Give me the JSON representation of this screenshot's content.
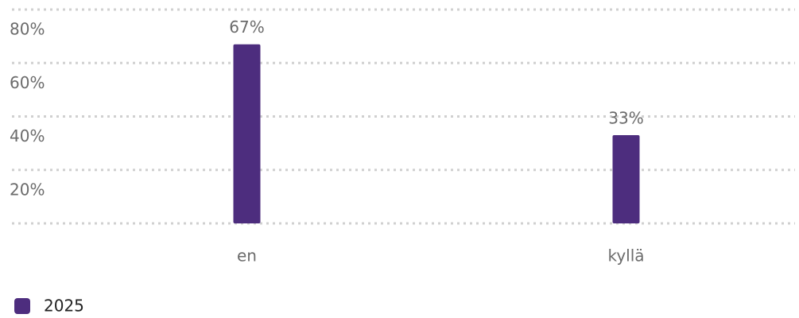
{
  "chart_data": {
    "type": "bar",
    "categories": [
      "en",
      "kyllä"
    ],
    "series": [
      {
        "name": "2025",
        "color": "#4d2d7e",
        "values": [
          67,
          33
        ],
        "value_labels": [
          "67%",
          "33%"
        ]
      }
    ],
    "ylim": [
      0,
      80
    ],
    "yticks": [
      {
        "value": 20,
        "label": "20%"
      },
      {
        "value": 40,
        "label": "40%"
      },
      {
        "value": 60,
        "label": "60%"
      },
      {
        "value": 80,
        "label": "80%"
      }
    ],
    "grid": true
  }
}
